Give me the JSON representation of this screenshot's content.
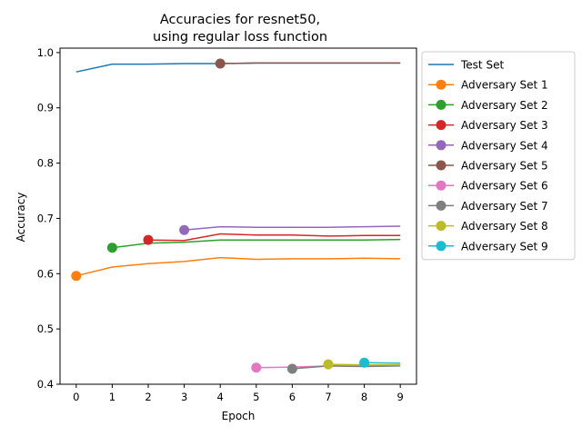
{
  "chart_data": {
    "type": "line",
    "title_line1": "Accuracies for resnet50,",
    "title_line2": "using regular loss function",
    "xlabel": "Epoch",
    "ylabel": "Accuracy",
    "xlim": [
      -0.45,
      9.45
    ],
    "ylim": [
      0.4,
      1.008
    ],
    "xticks": [
      0,
      1,
      2,
      3,
      4,
      5,
      6,
      7,
      8,
      9
    ],
    "yticks": [
      0.4,
      0.5,
      0.6,
      0.7,
      0.8,
      0.9,
      1.0
    ],
    "ytick_labels": [
      "0.4",
      "0.5",
      "0.6",
      "0.7",
      "0.8",
      "0.9",
      "1.0"
    ],
    "grid": false,
    "legend_position": "outside-right-top",
    "series": [
      {
        "name": "Test Set",
        "color": "#1f77b4",
        "marker": false,
        "x": [
          0,
          1,
          2,
          3,
          4,
          5,
          6,
          7,
          8,
          9
        ],
        "y": [
          0.965,
          0.979,
          0.979,
          0.98,
          0.98,
          0.981,
          0.981,
          0.981,
          0.981,
          0.981
        ]
      },
      {
        "name": "Adversary Set 1",
        "color": "#ff7f0e",
        "marker": true,
        "x": [
          0,
          1,
          2,
          3,
          4,
          5,
          6,
          7,
          8,
          9
        ],
        "y": [
          0.596,
          0.612,
          0.618,
          0.622,
          0.629,
          0.626,
          0.627,
          0.627,
          0.628,
          0.627
        ]
      },
      {
        "name": "Adversary Set 2",
        "color": "#2ca02c",
        "marker": true,
        "x": [
          1,
          2,
          3,
          4,
          5,
          6,
          7,
          8,
          9
        ],
        "y": [
          0.647,
          0.655,
          0.657,
          0.661,
          0.661,
          0.661,
          0.661,
          0.661,
          0.662
        ]
      },
      {
        "name": "Adversary Set 3",
        "color": "#d62728",
        "marker": true,
        "x": [
          2,
          3,
          4,
          5,
          6,
          7,
          8,
          9
        ],
        "y": [
          0.661,
          0.66,
          0.672,
          0.67,
          0.67,
          0.668,
          0.669,
          0.669
        ]
      },
      {
        "name": "Adversary Set 4",
        "color": "#9467bd",
        "marker": true,
        "x": [
          3,
          4,
          5,
          6,
          7,
          8,
          9
        ],
        "y": [
          0.679,
          0.685,
          0.684,
          0.684,
          0.684,
          0.685,
          0.686
        ]
      },
      {
        "name": "Adversary Set 5",
        "color": "#8c564b",
        "marker": true,
        "x": [
          4,
          5,
          6,
          7,
          8,
          9
        ],
        "y": [
          0.98,
          0.981,
          0.981,
          0.981,
          0.981,
          0.981
        ]
      },
      {
        "name": "Adversary Set 6",
        "color": "#e377c2",
        "marker": true,
        "x": [
          5,
          6,
          7,
          8,
          9
        ],
        "y": [
          0.43,
          0.431,
          0.433,
          0.433,
          0.434
        ]
      },
      {
        "name": "Adversary Set 7",
        "color": "#7f7f7f",
        "marker": true,
        "x": [
          6,
          7,
          8,
          9
        ],
        "y": [
          0.428,
          0.433,
          0.432,
          0.433
        ]
      },
      {
        "name": "Adversary Set 8",
        "color": "#bcbd22",
        "marker": true,
        "x": [
          7,
          8,
          9
        ],
        "y": [
          0.436,
          0.435,
          0.435
        ]
      },
      {
        "name": "Adversary Set 9",
        "color": "#17becf",
        "marker": true,
        "x": [
          8,
          9
        ],
        "y": [
          0.439,
          0.438
        ]
      }
    ]
  }
}
